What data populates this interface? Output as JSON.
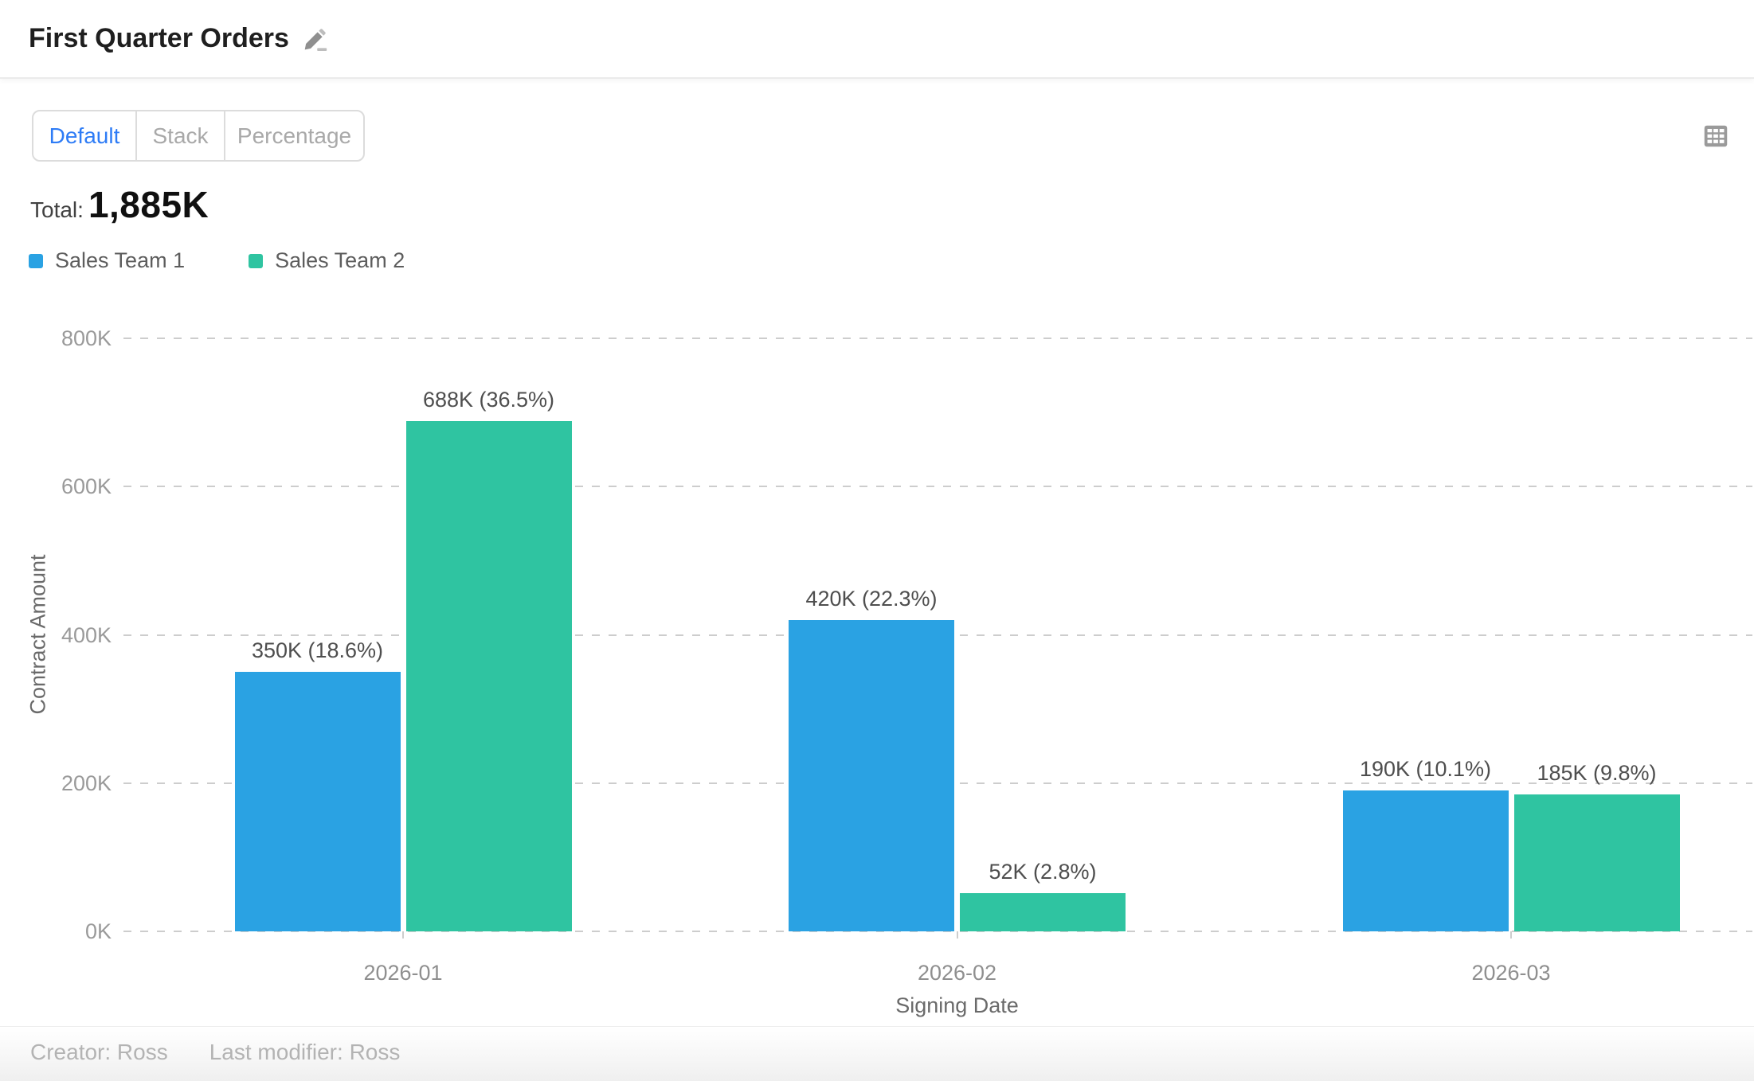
{
  "header": {
    "title": "First Quarter Orders"
  },
  "toolbar": {
    "view_tabs": [
      {
        "label": "Default",
        "active": true
      },
      {
        "label": "Stack",
        "active": false
      },
      {
        "label": "Percentage",
        "active": false
      }
    ]
  },
  "summary": {
    "total_label": "Total:",
    "total_value": "1,885K"
  },
  "chart_data": {
    "type": "bar",
    "title": "First Quarter Orders",
    "categories": [
      "2026-01",
      "2026-02",
      "2026-03"
    ],
    "series": [
      {
        "name": "Sales Team 1",
        "color": "#2aa2e3",
        "values": [
          350,
          420,
          190
        ],
        "data_labels": [
          "350K (18.6%)",
          "420K (22.3%)",
          "190K (10.1%)"
        ]
      },
      {
        "name": "Sales Team 2",
        "color": "#2fc4a1",
        "values": [
          688,
          52,
          185
        ],
        "data_labels": [
          "688K (36.5%)",
          "52K (2.8%)",
          "185K (9.8%)"
        ]
      }
    ],
    "unit": "K",
    "total": "1,885K",
    "xlabel": "Signing Date",
    "ylabel": "Contract Amount",
    "ylim": [
      0,
      800
    ],
    "yticks": [
      {
        "value": 0,
        "label": "0K"
      },
      {
        "value": 200,
        "label": "200K"
      },
      {
        "value": 400,
        "label": "400K"
      },
      {
        "value": 600,
        "label": "600K"
      },
      {
        "value": 800,
        "label": "800K"
      }
    ],
    "grid": "horizontal-dashed",
    "legend_position": "top-left",
    "bar_label_position": "top"
  },
  "footer": {
    "creator": "Creator: Ross",
    "last_modifier": "Last modifier: Ross"
  }
}
